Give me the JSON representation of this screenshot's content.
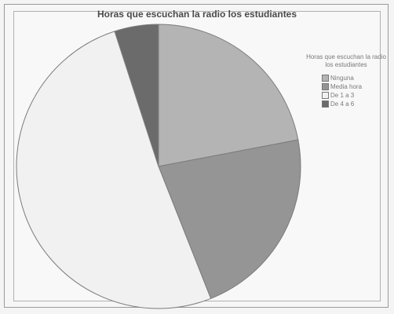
{
  "chart_data": {
    "type": "pie",
    "title": "Horas que escuchan la radio los estudiantes",
    "legend_title": "Horas que escuchan la radio los estudiantes",
    "legend_position": "right",
    "slices": [
      {
        "label": "Ninguna",
        "value": 22,
        "color": "#b4b4b4"
      },
      {
        "label": "Media hora",
        "value": 22,
        "color": "#959595"
      },
      {
        "label": "De 1 a 3",
        "value": 51,
        "color": "#f1f1f1"
      },
      {
        "label": "De 4 a 6",
        "value": 5,
        "color": "#6b6b6b"
      }
    ]
  }
}
